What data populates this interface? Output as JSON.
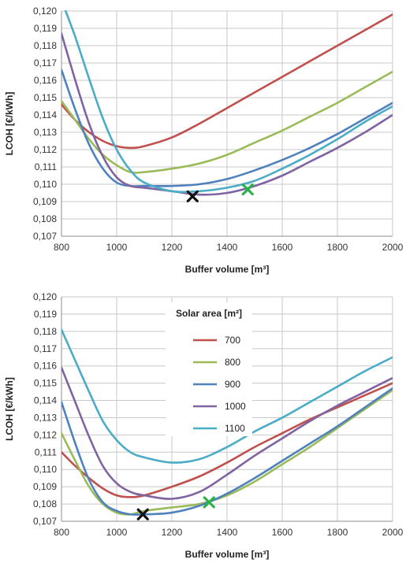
{
  "chart_data": [
    {
      "type": "line",
      "xlabel": "Buffer volume [m³]",
      "ylabel": "LCOH [€/kWh]",
      "xlim": [
        800,
        2000
      ],
      "ylim": [
        0.107,
        0.12
      ],
      "x_ticks": [
        "800",
        "1000",
        "1200",
        "1400",
        "1600",
        "1800",
        "2000"
      ],
      "y_ticks": [
        "0,107",
        "0,108",
        "0,109",
        "0,110",
        "0,111",
        "0,112",
        "0,113",
        "0,114",
        "0,115",
        "0,116",
        "0,117",
        "0,118",
        "0,119",
        "0,120"
      ],
      "grid": true,
      "series": [
        {
          "name": "700",
          "color": "#c0504d",
          "points": [
            [
              800,
              0.1146
            ],
            [
              850,
              0.1137
            ],
            [
              900,
              0.113
            ],
            [
              950,
              0.1125
            ],
            [
              1000,
              0.1122
            ],
            [
              1050,
              0.1121
            ],
            [
              1100,
              0.1122
            ],
            [
              1200,
              0.1127
            ],
            [
              1300,
              0.1135
            ],
            [
              1400,
              0.1144
            ],
            [
              1500,
              0.1153
            ],
            [
              1600,
              0.1162
            ],
            [
              1700,
              0.1171
            ],
            [
              1800,
              0.118
            ],
            [
              1900,
              0.1189
            ],
            [
              2000,
              0.1198
            ]
          ]
        },
        {
          "name": "800",
          "color": "#9bbb59",
          "points": [
            [
              800,
              0.1148
            ],
            [
              850,
              0.1137
            ],
            [
              900,
              0.1126
            ],
            [
              950,
              0.1117
            ],
            [
              1000,
              0.1111
            ],
            [
              1050,
              0.1107
            ],
            [
              1100,
              0.1107
            ],
            [
              1200,
              0.1109
            ],
            [
              1300,
              0.1112
            ],
            [
              1400,
              0.1117
            ],
            [
              1500,
              0.1124
            ],
            [
              1600,
              0.1131
            ],
            [
              1700,
              0.1139
            ],
            [
              1800,
              0.1147
            ],
            [
              1900,
              0.1156
            ],
            [
              2000,
              0.1165
            ]
          ]
        },
        {
          "name": "900",
          "color": "#4f81bd",
          "points": [
            [
              800,
              0.1166
            ],
            [
              850,
              0.1143
            ],
            [
              900,
              0.1123
            ],
            [
              950,
              0.1109
            ],
            [
              1000,
              0.1101
            ],
            [
              1050,
              0.1099
            ],
            [
              1100,
              0.1099
            ],
            [
              1200,
              0.1099
            ],
            [
              1300,
              0.11
            ],
            [
              1400,
              0.1103
            ],
            [
              1500,
              0.1108
            ],
            [
              1600,
              0.1114
            ],
            [
              1700,
              0.1121
            ],
            [
              1800,
              0.1129
            ],
            [
              1900,
              0.1138
            ],
            [
              2000,
              0.1147
            ]
          ]
        },
        {
          "name": "1000",
          "color": "#8064a2",
          "points": [
            [
              800,
              0.1187
            ],
            [
              850,
              0.116
            ],
            [
              900,
              0.1135
            ],
            [
              950,
              0.1116
            ],
            [
              1000,
              0.1104
            ],
            [
              1050,
              0.1099
            ],
            [
              1100,
              0.1098
            ],
            [
              1200,
              0.1096
            ],
            [
              1300,
              0.1094
            ],
            [
              1400,
              0.1095
            ],
            [
              1500,
              0.1099
            ],
            [
              1600,
              0.1105
            ],
            [
              1700,
              0.1113
            ],
            [
              1800,
              0.1121
            ],
            [
              1900,
              0.113
            ],
            [
              2000,
              0.114
            ]
          ]
        },
        {
          "name": "1100",
          "color": "#4bacc6",
          "points": [
            [
              815,
              0.12
            ],
            [
              850,
              0.1185
            ],
            [
              900,
              0.1161
            ],
            [
              950,
              0.1138
            ],
            [
              1000,
              0.112
            ],
            [
              1050,
              0.1108
            ],
            [
              1100,
              0.1101
            ],
            [
              1200,
              0.1096
            ],
            [
              1300,
              0.1096
            ],
            [
              1400,
              0.1098
            ],
            [
              1500,
              0.1102
            ],
            [
              1600,
              0.1109
            ],
            [
              1700,
              0.1117
            ],
            [
              1800,
              0.1126
            ],
            [
              1900,
              0.1136
            ],
            [
              2000,
              0.1145
            ]
          ]
        }
      ],
      "markers": [
        {
          "x": 1275,
          "y": 0.1093,
          "color": "#111111"
        },
        {
          "x": 1475,
          "y": 0.1097,
          "color": "#2bb34a"
        }
      ]
    },
    {
      "type": "line",
      "xlabel": "Buffer volume [m³]",
      "ylabel": "LCOH [€/kWh]",
      "xlim": [
        800,
        2000
      ],
      "ylim": [
        0.107,
        0.12
      ],
      "x_ticks": [
        "800",
        "1000",
        "1200",
        "1400",
        "1600",
        "1800",
        "2000"
      ],
      "y_ticks": [
        "0,107",
        "0,108",
        "0,109",
        "0,110",
        "0,111",
        "0,112",
        "0,113",
        "0,114",
        "0,115",
        "0,116",
        "0,117",
        "0,118",
        "0,119",
        "0,120"
      ],
      "grid": true,
      "legend": {
        "title": "Solar area [m²]",
        "placement": "center-left",
        "entries": [
          "700",
          "800",
          "900",
          "1000",
          "1100"
        ]
      },
      "series": [
        {
          "name": "700",
          "color": "#c0504d",
          "points": [
            [
              800,
              0.111
            ],
            [
              850,
              0.1102
            ],
            [
              900,
              0.1095
            ],
            [
              950,
              0.1089
            ],
            [
              1000,
              0.1085
            ],
            [
              1050,
              0.1084
            ],
            [
              1100,
              0.1085
            ],
            [
              1200,
              0.109
            ],
            [
              1300,
              0.1096
            ],
            [
              1400,
              0.1104
            ],
            [
              1500,
              0.1113
            ],
            [
              1600,
              0.1121
            ],
            [
              1700,
              0.1129
            ],
            [
              1800,
              0.1136
            ],
            [
              1900,
              0.1143
            ],
            [
              2000,
              0.115
            ]
          ]
        },
        {
          "name": "800",
          "color": "#9bbb59",
          "points": [
            [
              800,
              0.1121
            ],
            [
              850,
              0.1105
            ],
            [
              900,
              0.109
            ],
            [
              950,
              0.108
            ],
            [
              1000,
              0.1075
            ],
            [
              1050,
              0.1074
            ],
            [
              1100,
              0.1076
            ],
            [
              1200,
              0.1078
            ],
            [
              1300,
              0.108
            ],
            [
              1400,
              0.1085
            ],
            [
              1500,
              0.1093
            ],
            [
              1600,
              0.1103
            ],
            [
              1700,
              0.1113
            ],
            [
              1800,
              0.1124
            ],
            [
              1900,
              0.1135
            ],
            [
              2000,
              0.1146
            ]
          ]
        },
        {
          "name": "900",
          "color": "#4f81bd",
          "points": [
            [
              800,
              0.1139
            ],
            [
              850,
              0.1115
            ],
            [
              900,
              0.1094
            ],
            [
              950,
              0.1081
            ],
            [
              1000,
              0.1076
            ],
            [
              1050,
              0.1074
            ],
            [
              1100,
              0.1074
            ],
            [
              1200,
              0.1075
            ],
            [
              1300,
              0.1079
            ],
            [
              1400,
              0.1086
            ],
            [
              1500,
              0.1095
            ],
            [
              1600,
              0.1105
            ],
            [
              1700,
              0.1115
            ],
            [
              1800,
              0.1125
            ],
            [
              1900,
              0.1136
            ],
            [
              2000,
              0.1147
            ]
          ]
        },
        {
          "name": "1000",
          "color": "#8064a2",
          "points": [
            [
              800,
              0.1159
            ],
            [
              850,
              0.1139
            ],
            [
              900,
              0.1119
            ],
            [
              950,
              0.1102
            ],
            [
              1000,
              0.1092
            ],
            [
              1050,
              0.1087
            ],
            [
              1100,
              0.1085
            ],
            [
              1200,
              0.1083
            ],
            [
              1300,
              0.1087
            ],
            [
              1400,
              0.1097
            ],
            [
              1500,
              0.1108
            ],
            [
              1600,
              0.1118
            ],
            [
              1700,
              0.1128
            ],
            [
              1800,
              0.1137
            ],
            [
              1900,
              0.1145
            ],
            [
              2000,
              0.1153
            ]
          ]
        },
        {
          "name": "1100",
          "color": "#4bacc6",
          "points": [
            [
              800,
              0.1181
            ],
            [
              850,
              0.1163
            ],
            [
              900,
              0.1145
            ],
            [
              950,
              0.1128
            ],
            [
              1000,
              0.1117
            ],
            [
              1050,
              0.111
            ],
            [
              1100,
              0.1107
            ],
            [
              1200,
              0.1104
            ],
            [
              1300,
              0.1106
            ],
            [
              1400,
              0.1113
            ],
            [
              1500,
              0.1122
            ],
            [
              1600,
              0.113
            ],
            [
              1700,
              0.1139
            ],
            [
              1800,
              0.1148
            ],
            [
              1900,
              0.1157
            ],
            [
              2000,
              0.1165
            ]
          ]
        }
      ],
      "markers": [
        {
          "x": 1095,
          "y": 0.1074,
          "color": "#111111"
        },
        {
          "x": 1335,
          "y": 0.1081,
          "color": "#2bb34a"
        }
      ]
    }
  ]
}
